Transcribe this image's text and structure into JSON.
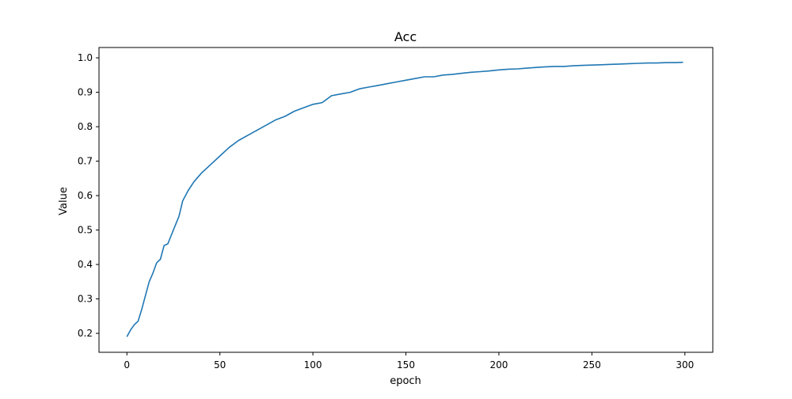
{
  "chart_data": {
    "type": "line",
    "title": "Acc",
    "xlabel": "epoch",
    "ylabel": "Value",
    "xlim": [
      -15,
      315
    ],
    "ylim": [
      0.145,
      1.03
    ],
    "xticks": [
      0,
      50,
      100,
      150,
      200,
      250,
      300
    ],
    "yticks": [
      0.2,
      0.3,
      0.4,
      0.5,
      0.6,
      0.7,
      0.8,
      0.9,
      1.0
    ],
    "ytick_labels": [
      "0.2",
      "0.3",
      "0.4",
      "0.5",
      "0.6",
      "0.7",
      "0.8",
      "0.9",
      "1.0"
    ],
    "grid": false,
    "series": [
      {
        "color": "#1f77b4",
        "x": [
          0,
          2,
          4,
          6,
          8,
          10,
          12,
          14,
          16,
          18,
          20,
          22,
          25,
          28,
          30,
          33,
          36,
          40,
          45,
          50,
          55,
          60,
          65,
          70,
          75,
          80,
          85,
          90,
          95,
          100,
          105,
          110,
          115,
          120,
          125,
          130,
          135,
          140,
          145,
          150,
          155,
          160,
          165,
          170,
          175,
          180,
          185,
          190,
          195,
          200,
          205,
          210,
          215,
          220,
          225,
          230,
          235,
          240,
          245,
          250,
          255,
          260,
          265,
          270,
          275,
          280,
          285,
          290,
          295,
          299
        ],
        "y": [
          0.19,
          0.21,
          0.225,
          0.235,
          0.27,
          0.31,
          0.35,
          0.375,
          0.405,
          0.415,
          0.455,
          0.46,
          0.5,
          0.54,
          0.585,
          0.615,
          0.64,
          0.665,
          0.69,
          0.715,
          0.74,
          0.76,
          0.775,
          0.79,
          0.805,
          0.82,
          0.83,
          0.845,
          0.855,
          0.865,
          0.87,
          0.89,
          0.895,
          0.9,
          0.91,
          0.915,
          0.92,
          0.925,
          0.93,
          0.935,
          0.94,
          0.945,
          0.945,
          0.95,
          0.952,
          0.955,
          0.958,
          0.96,
          0.962,
          0.965,
          0.967,
          0.968,
          0.97,
          0.972,
          0.974,
          0.975,
          0.975,
          0.977,
          0.978,
          0.979,
          0.98,
          0.981,
          0.982,
          0.983,
          0.984,
          0.985,
          0.985,
          0.986,
          0.986,
          0.987
        ]
      }
    ]
  }
}
